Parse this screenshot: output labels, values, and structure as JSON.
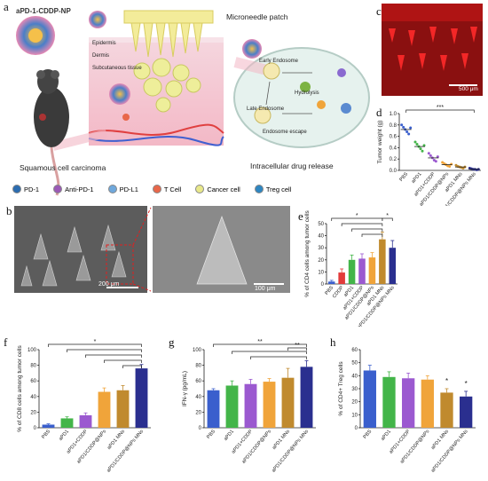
{
  "panel_labels": {
    "a": "a",
    "b": "b",
    "c": "c",
    "d": "d",
    "e": "e",
    "f": "f",
    "g": "g",
    "h": "h"
  },
  "panel_a": {
    "np_label": "aPD-1-CDDP-NP",
    "patch_label": "Microneedle patch",
    "epidermis": "Epidermis",
    "dermis": "Dermis",
    "subcutaneous": "Subcutaneous tissue",
    "tumor_label": "Squamous cell carcinoma",
    "early_endosome": "Early Endosome",
    "late_endosome": "Late Endosome",
    "hydrolysis": "Hydrolysis",
    "escape": "Endosome escape",
    "release_label": "Intracellular drug release",
    "legend": [
      {
        "text": "PD-1",
        "icon": "pd1-receptor-icon",
        "color": "#2b6cb0"
      },
      {
        "text": "Anti-PD-1",
        "icon": "antibody-icon",
        "color": "#9b59b6"
      },
      {
        "text": "PD-L1",
        "icon": "pdl1-icon",
        "color": "#6fa8dc"
      },
      {
        "text": "T Cell",
        "icon": "t-cell-icon",
        "color": "#e8674a"
      },
      {
        "text": "Cancer cell",
        "icon": "cancer-cell-icon",
        "color": "#e8e88a"
      },
      {
        "text": "Treg cell",
        "icon": "treg-cell-icon",
        "color": "#2e86c1"
      }
    ]
  },
  "panel_b": {
    "scale1": "200 μm",
    "scale2": "100 μm"
  },
  "panel_c": {
    "scale": "500 μm"
  },
  "colors": {
    "PBS": "#3a5fcd",
    "CDDP": "#e23b3b",
    "aPD1": "#43b549",
    "aPD1+CDDP": "#9b59d0",
    "aPD1/CDDP@NPs": "#f0a43a",
    "aPD1 MNs": "#c08a2e",
    "aPD1/CDDP@NPs MNs": "#2a2f8f"
  },
  "chart_data": [
    {
      "panel": "d",
      "type": "scatter",
      "ylabel": "Tumor weight (g)",
      "ylim": [
        0,
        1.0
      ],
      "yticks": [
        "0.0",
        "0.2",
        "0.4",
        "0.6",
        "0.8",
        "1.0"
      ],
      "categories": [
        "PBS",
        "aPD1",
        "aPD1+CDDP",
        "aPD1/CDDP@NPs",
        "aPD1 MNs",
        "aPD1/CDDP@NPs MNs"
      ],
      "means": [
        0.72,
        0.42,
        0.22,
        0.1,
        0.06,
        0.02
      ],
      "points": [
        [
          0.8,
          0.76,
          0.72,
          0.68,
          0.64,
          0.75
        ],
        [
          0.5,
          0.46,
          0.42,
          0.38,
          0.34,
          0.44
        ],
        [
          0.3,
          0.26,
          0.22,
          0.18,
          0.16,
          0.24
        ],
        [
          0.14,
          0.12,
          0.1,
          0.08,
          0.07,
          0.11
        ],
        [
          0.09,
          0.07,
          0.06,
          0.05,
          0.04,
          0.06
        ],
        [
          0.04,
          0.03,
          0.02,
          0.02,
          0.01,
          0.02
        ]
      ],
      "sig": "***"
    },
    {
      "panel": "e",
      "type": "bar",
      "ylabel": "% of CD4 cells among tumor cells",
      "ylim": [
        0,
        50
      ],
      "yticks": [
        "0",
        "10",
        "20",
        "30",
        "40",
        "50"
      ],
      "categories": [
        "PBS",
        "CDDP",
        "aPD1",
        "aPD1+CDDP",
        "aPD1/CDDP@NPs",
        "aPD1 MNs",
        "aPD1/CDDP@NPs MNs"
      ],
      "values": [
        2,
        9.5,
        20,
        21,
        22,
        37,
        30
      ],
      "errors": [
        1,
        3,
        4,
        4,
        4,
        6,
        6
      ],
      "sig": [
        "*",
        "*"
      ]
    },
    {
      "panel": "f",
      "type": "bar",
      "ylabel": "% of CD8 cells among tumor cells",
      "ylim": [
        0,
        100
      ],
      "yticks": [
        "0",
        "20",
        "40",
        "60",
        "80",
        "100"
      ],
      "categories": [
        "PBS",
        "aPD1",
        "aPD1+CDDP",
        "aPD1/CDDP@NPs",
        "aPD1 MNs",
        "aPD1/CDDP@NPs MNs"
      ],
      "values": [
        4,
        12,
        16,
        46,
        48,
        76
      ],
      "errors": [
        1,
        2,
        3,
        5,
        6,
        5
      ],
      "sig": [
        "*"
      ]
    },
    {
      "panel": "g",
      "type": "bar",
      "ylabel": "IFN-γ (pg/mL)",
      "ylim": [
        0,
        100
      ],
      "yticks": [
        "0",
        "20",
        "40",
        "60",
        "80",
        "100"
      ],
      "categories": [
        "PBS",
        "aPD1",
        "aPD1+CDDP",
        "aPD1/CDDP@NPs",
        "aPD1 MNs",
        "aPD1/CDDP@NPs MNs"
      ],
      "values": [
        48,
        54,
        56,
        59,
        64,
        78
      ],
      "errors": [
        2,
        6,
        6,
        4,
        12,
        8
      ],
      "sig": [
        "**",
        "**"
      ]
    },
    {
      "panel": "h",
      "type": "bar",
      "ylabel": "% of CD4+ Treg cells",
      "ylim": [
        0,
        60
      ],
      "yticks": [
        "0",
        "10",
        "20",
        "30",
        "40",
        "50",
        "60"
      ],
      "categories": [
        "PBS",
        "aPD1",
        "aPD1+CDDP",
        "aPD1/CDDP@NPs",
        "aPD1 MNs",
        "aPD1/CDDP@NPs MNs"
      ],
      "values": [
        44,
        39,
        38,
        37,
        27,
        24
      ],
      "errors": [
        4,
        4,
        4,
        3,
        3,
        4
      ],
      "sig": [
        "*",
        "*"
      ]
    }
  ]
}
